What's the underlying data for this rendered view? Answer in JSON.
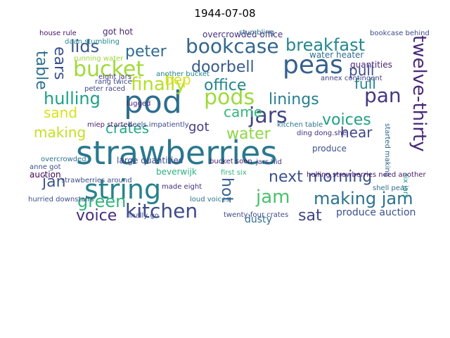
{
  "title": "1944-07-08",
  "words": [
    {
      "text": "strawberries",
      "color": "#2a788e"
    },
    {
      "text": "pod",
      "color": "#2e6e8e"
    },
    {
      "text": "string",
      "color": "#26828e"
    },
    {
      "text": "peas",
      "color": "#35608d"
    },
    {
      "text": "bucket",
      "color": "#a0da39"
    },
    {
      "text": "bookcase",
      "color": "#31668e"
    },
    {
      "text": "kitchen",
      "color": "#3e4a89"
    },
    {
      "text": "jars",
      "color": "#414487"
    },
    {
      "text": "pods",
      "color": "#9fda3a"
    },
    {
      "text": "breakfast",
      "color": "#24878e"
    },
    {
      "text": "pan",
      "color": "#453781"
    },
    {
      "text": "twelve-thirty",
      "color": "#482878"
    },
    {
      "text": "jam",
      "color": "#4ac16d"
    },
    {
      "text": "next morning",
      "color": "#3b528b"
    },
    {
      "text": "making jam",
      "color": "#2c728e"
    },
    {
      "text": "green",
      "color": "#31b57b"
    },
    {
      "text": "hulling",
      "color": "#1fa187"
    },
    {
      "text": "finally",
      "color": "#b5de2b"
    },
    {
      "text": "lids",
      "color": "#39568c"
    },
    {
      "text": "peter",
      "color": "#2f6b8e"
    },
    {
      "text": "linings",
      "color": "#277f8e"
    },
    {
      "text": "doorbell",
      "color": "#375b8d"
    },
    {
      "text": "voices",
      "color": "#1fa088"
    },
    {
      "text": "water",
      "color": "#8ed645"
    },
    {
      "text": "crates",
      "color": "#22a785"
    },
    {
      "text": "making",
      "color": "#c5e021"
    },
    {
      "text": "voice",
      "color": "#472d7b"
    },
    {
      "text": "jan",
      "color": "#3a548c"
    },
    {
      "text": "sat",
      "color": "#404588"
    },
    {
      "text": "pull",
      "color": "#3d4d8a"
    },
    {
      "text": "full",
      "color": "#25848e"
    },
    {
      "text": "table",
      "color": "#2d718e"
    },
    {
      "text": "ears",
      "color": "#3b518b"
    },
    {
      "text": "office",
      "color": "#24868e"
    },
    {
      "text": "came",
      "color": "#35b779"
    },
    {
      "text": "sand",
      "color": "#d8e219"
    },
    {
      "text": "got",
      "color": "#433d84"
    },
    {
      "text": "hot",
      "color": "#355e8d"
    },
    {
      "text": "bep",
      "color": "#dde318"
    },
    {
      "text": "hear",
      "color": "#3f4788"
    },
    {
      "text": "produce auction",
      "color": "#3b518b"
    },
    {
      "text": "beverwijk",
      "color": "#29af7f"
    },
    {
      "text": "auction",
      "color": "#440154"
    },
    {
      "text": "large quantities",
      "color": "#404688"
    },
    {
      "text": "dusty",
      "color": "#2e6e8e"
    },
    {
      "text": "quantities",
      "color": "#482576"
    },
    {
      "text": "produce",
      "color": "#3c4f8a"
    },
    {
      "text": "water heater",
      "color": "#2f6c8e"
    },
    {
      "text": "overcrowded office",
      "color": "#46327e"
    },
    {
      "text": "got hot",
      "color": "#482475"
    },
    {
      "text": "stumbling",
      "color": "#2d708e"
    },
    {
      "text": "bookcase behind",
      "color": "#3e4989"
    },
    {
      "text": "house rule",
      "color": "#471164"
    },
    {
      "text": "daan stumbling",
      "color": "#23898e"
    },
    {
      "text": "eight jars",
      "color": "#453882"
    },
    {
      "text": "another bucket",
      "color": "#25848e"
    },
    {
      "text": "miep started",
      "color": "#481f70"
    },
    {
      "text": "heels impatiently",
      "color": "#3e4a89"
    },
    {
      "text": "overcrowded",
      "color": "#2c738e"
    },
    {
      "text": "anne got",
      "color": "#3c4f8a"
    },
    {
      "text": "made eight",
      "color": "#472c7a"
    },
    {
      "text": "loud voices",
      "color": "#2b748e"
    },
    {
      "text": "twenty-four crates",
      "color": "#3f4889"
    },
    {
      "text": "first six",
      "color": "#34b679"
    },
    {
      "text": "finally go",
      "color": "#3b528b"
    },
    {
      "text": "bucket soon",
      "color": "#48186a"
    },
    {
      "text": "six jars",
      "color": "#1f9a8a"
    },
    {
      "text": "started making",
      "color": "#31668e"
    },
    {
      "text": "annex contingent",
      "color": "#404387"
    },
    {
      "text": "lugged",
      "color": "#482173"
    },
    {
      "text": "rang twice",
      "color": "#3e4c8a"
    },
    {
      "text": "strawberries around",
      "color": "#3d4e8a"
    },
    {
      "text": "hulling strawberries need another",
      "color": "#48186a"
    },
    {
      "text": "kitchen table",
      "color": "#2a768e"
    },
    {
      "text": "running water",
      "color": "#9bd93c"
    },
    {
      "text": "peter raced",
      "color": "#414487"
    },
    {
      "text": "shell peas",
      "color": "#2e6e8e"
    },
    {
      "text": "jars hid",
      "color": "#433e85"
    },
    {
      "text": "ding dong.she",
      "color": "#46307e"
    },
    {
      "text": "hurried downstairs",
      "color": "#3c4f8a"
    }
  ]
}
